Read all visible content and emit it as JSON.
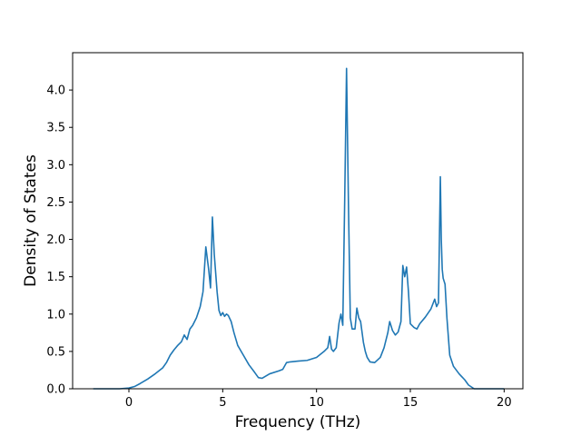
{
  "chart_data": {
    "type": "line",
    "title": "",
    "xlabel": "Frequency (THz)",
    "ylabel": "Density of States",
    "xlim": [
      -3.0,
      21.0
    ],
    "ylim": [
      0.0,
      4.5
    ],
    "xticks": [
      0,
      5,
      10,
      15,
      20
    ],
    "xtick_labels": [
      "0",
      "5",
      "10",
      "15",
      "20"
    ],
    "yticks": [
      0.0,
      0.5,
      1.0,
      1.5,
      2.0,
      2.5,
      3.0,
      3.5,
      4.0
    ],
    "ytick_labels": [
      "0.0",
      "0.5",
      "1.0",
      "1.5",
      "2.0",
      "2.5",
      "3.0",
      "3.5",
      "4.0"
    ],
    "grid": false,
    "legend": "none",
    "series_color": "#1f77b4",
    "series": [
      {
        "x": [
          -1.9,
          -0.5,
          0.0,
          0.3,
          0.6,
          1.0,
          1.4,
          1.8,
          2.0,
          2.2,
          2.4,
          2.6,
          2.8,
          2.95,
          3.1,
          3.25,
          3.4,
          3.6,
          3.8,
          3.95,
          4.1,
          4.25,
          4.35,
          4.45,
          4.55,
          4.7,
          4.8,
          4.9,
          5.0,
          5.1,
          5.2,
          5.3,
          5.45,
          5.6,
          5.8,
          6.1,
          6.4,
          6.7,
          6.9,
          7.1,
          7.5,
          8.0,
          8.2,
          8.4,
          8.6,
          9.0,
          9.5,
          10.0,
          10.4,
          10.6,
          10.7,
          10.8,
          10.9,
          11.05,
          11.2,
          11.3,
          11.4,
          11.5,
          11.6,
          11.7,
          11.8,
          11.9,
          12.05,
          12.15,
          12.25,
          12.35,
          12.5,
          12.6,
          12.7,
          12.85,
          13.1,
          13.4,
          13.6,
          13.8,
          13.9,
          14.05,
          14.2,
          14.35,
          14.5,
          14.6,
          14.7,
          14.8,
          14.9,
          15.0,
          15.2,
          15.35,
          15.5,
          15.8,
          16.1,
          16.3,
          16.4,
          16.5,
          16.6,
          16.65,
          16.7,
          16.75,
          16.85,
          16.95,
          17.1,
          17.3,
          17.6,
          17.9,
          18.1,
          18.4,
          19.0,
          20.0
        ],
        "y": [
          0.0,
          0.0,
          0.01,
          0.03,
          0.07,
          0.13,
          0.2,
          0.28,
          0.35,
          0.45,
          0.52,
          0.58,
          0.63,
          0.72,
          0.66,
          0.8,
          0.85,
          0.95,
          1.1,
          1.3,
          1.9,
          1.6,
          1.35,
          2.3,
          1.8,
          1.3,
          1.05,
          0.98,
          1.02,
          0.97,
          1.0,
          0.98,
          0.9,
          0.75,
          0.58,
          0.45,
          0.32,
          0.22,
          0.15,
          0.14,
          0.2,
          0.24,
          0.26,
          0.35,
          0.36,
          0.37,
          0.38,
          0.42,
          0.5,
          0.55,
          0.7,
          0.53,
          0.5,
          0.55,
          0.88,
          1.0,
          0.85,
          2.5,
          4.29,
          2.5,
          0.95,
          0.8,
          0.8,
          1.08,
          0.95,
          0.9,
          0.62,
          0.5,
          0.42,
          0.36,
          0.35,
          0.42,
          0.55,
          0.75,
          0.9,
          0.78,
          0.72,
          0.76,
          0.9,
          1.65,
          1.5,
          1.63,
          1.3,
          0.87,
          0.82,
          0.8,
          0.87,
          0.96,
          1.07,
          1.2,
          1.1,
          1.15,
          2.84,
          2.0,
          1.6,
          1.48,
          1.4,
          0.95,
          0.45,
          0.3,
          0.2,
          0.12,
          0.05,
          0.0,
          0.0,
          0.0
        ]
      }
    ]
  }
}
